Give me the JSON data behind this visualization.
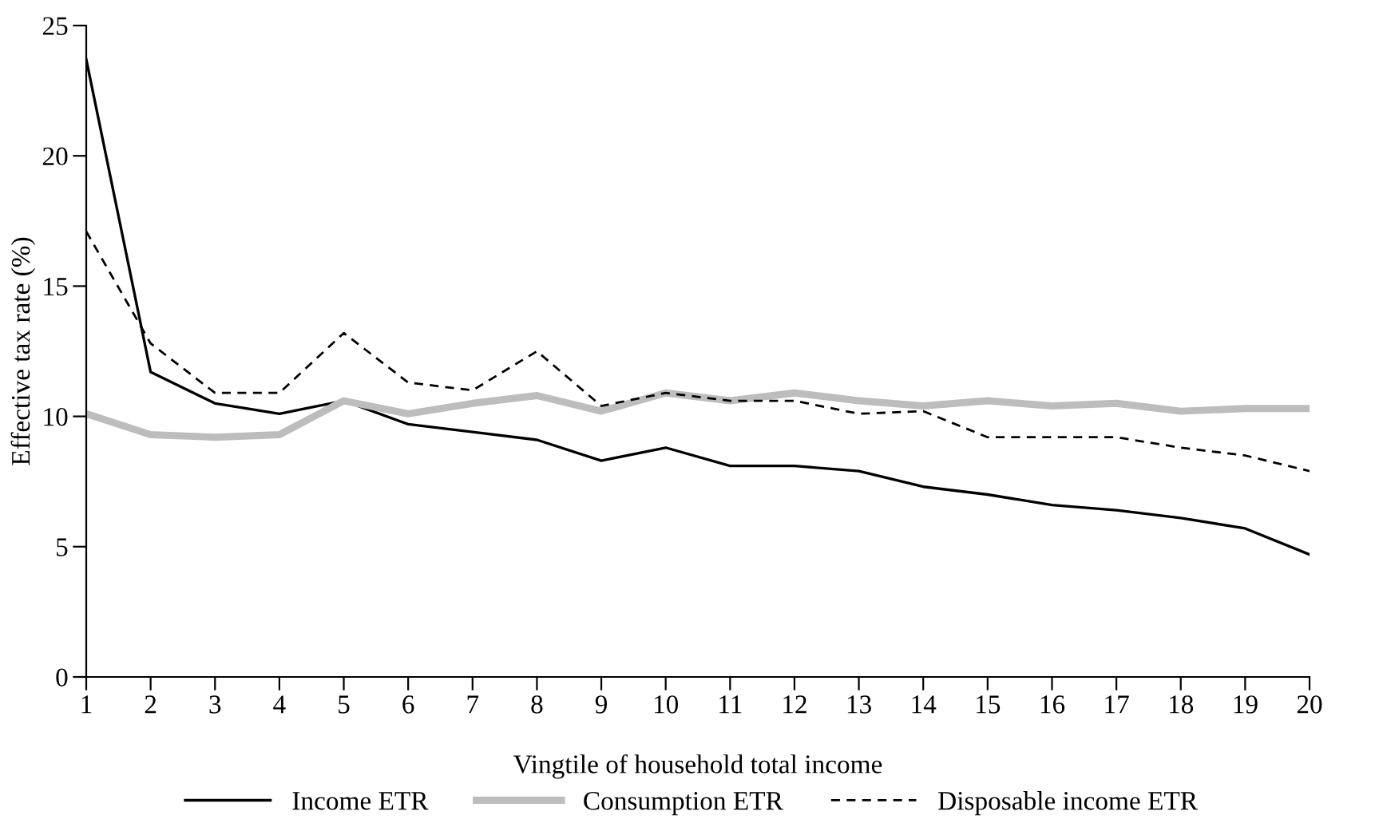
{
  "chart_data": {
    "type": "line",
    "xlabel": "Vingtile of household total income",
    "ylabel": "Effective tax rate (%)",
    "x": [
      1,
      2,
      3,
      4,
      5,
      6,
      7,
      8,
      9,
      10,
      11,
      12,
      13,
      14,
      15,
      16,
      17,
      18,
      19,
      20
    ],
    "xlim": [
      1,
      20
    ],
    "xticks": [
      1,
      2,
      3,
      4,
      5,
      6,
      7,
      8,
      9,
      10,
      11,
      12,
      13,
      14,
      15,
      16,
      17,
      18,
      19,
      20
    ],
    "ylim": [
      0,
      25
    ],
    "yticks": [
      0,
      5,
      10,
      15,
      20,
      25
    ],
    "grid": false,
    "legend": "bottom",
    "marker": "none",
    "series": [
      {
        "name": "Income ETR",
        "color": "#000000",
        "line_style": "solid",
        "values": [
          23.7,
          11.7,
          10.5,
          10.1,
          10.6,
          9.7,
          9.4,
          9.1,
          8.3,
          8.8,
          8.1,
          8.1,
          7.9,
          7.3,
          7.0,
          6.6,
          6.4,
          6.1,
          5.7,
          4.7
        ]
      },
      {
        "name": "Consumption ETR",
        "color": "#bdbdbd",
        "line_style": "solid",
        "values": [
          10.1,
          9.3,
          9.2,
          9.3,
          10.6,
          10.1,
          10.5,
          10.8,
          10.2,
          10.9,
          10.6,
          10.9,
          10.6,
          10.4,
          10.6,
          10.4,
          10.5,
          10.2,
          10.3,
          10.3
        ]
      },
      {
        "name": "Disposable income ETR",
        "color": "#000000",
        "line_style": "dashed",
        "values": [
          17.1,
          12.8,
          10.9,
          10.9,
          13.2,
          11.3,
          11.0,
          12.5,
          10.4,
          10.9,
          10.6,
          10.6,
          10.1,
          10.2,
          9.2,
          9.2,
          9.2,
          8.8,
          8.5,
          7.9
        ]
      }
    ]
  }
}
